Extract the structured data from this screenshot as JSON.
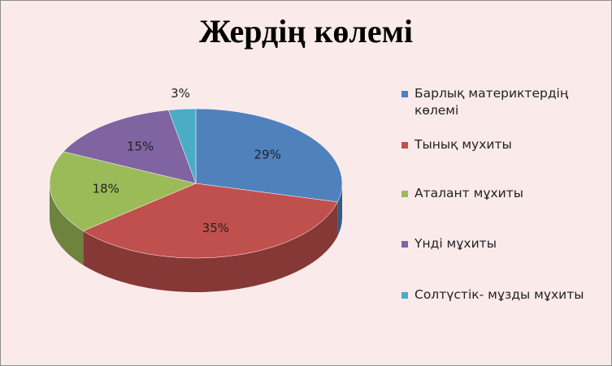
{
  "chart_data": {
    "type": "pie3d",
    "title": "Жердің көлемі",
    "categories": [
      "Барлық материктердің көлемі",
      "Тынық мухиты",
      "Аталант мұхиты",
      "Үнді мұхиты",
      "Солтүстік- мұзды мұхиты"
    ],
    "values": [
      29,
      35,
      18,
      15,
      3
    ],
    "value_labels": [
      "29%",
      "35%",
      "18%",
      "15%",
      "3%"
    ],
    "colors": [
      "#4f81bd",
      "#c0504d",
      "#9bbb59",
      "#8064a2",
      "#4bacc6"
    ],
    "legend": "right"
  }
}
